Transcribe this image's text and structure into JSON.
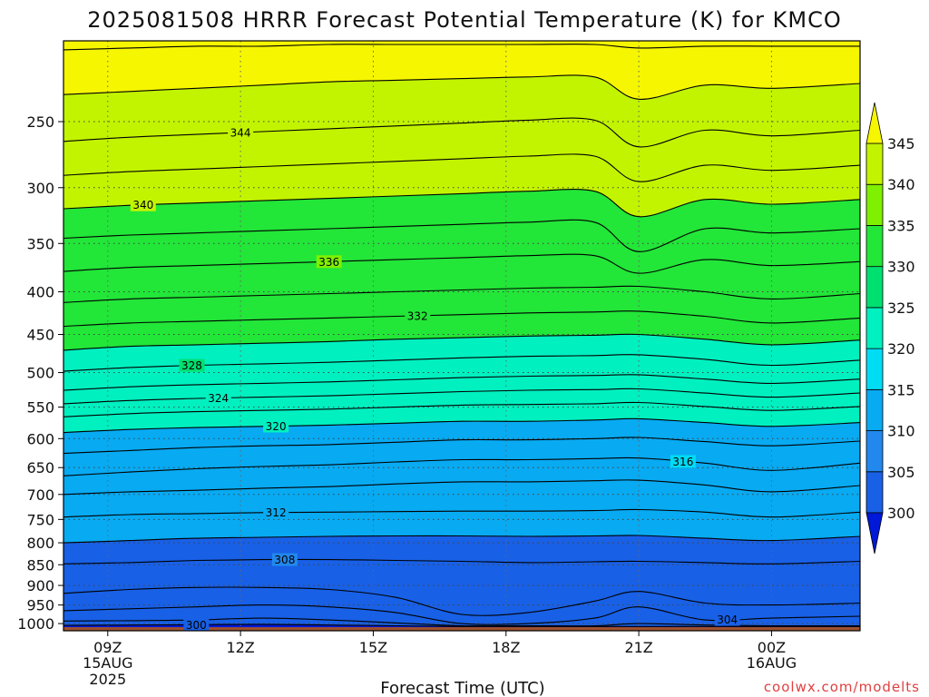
{
  "chart_data": {
    "type": "heatmap",
    "title": "2025081508 HRRR Forecast Potential Temperature (K) for KMCO",
    "xlabel": "Forecast Time (UTC)",
    "ylabel": "",
    "x_ticks": [
      {
        "label": "09Z",
        "sub1": "15AUG",
        "sub2": "2025",
        "hour": 9
      },
      {
        "label": "12Z",
        "sub1": "",
        "sub2": "",
        "hour": 12
      },
      {
        "label": "15Z",
        "sub1": "",
        "sub2": "",
        "hour": 15
      },
      {
        "label": "18Z",
        "sub1": "",
        "sub2": "",
        "hour": 18
      },
      {
        "label": "21Z",
        "sub1": "",
        "sub2": "",
        "hour": 21
      },
      {
        "label": "00Z",
        "sub1": "16AUG",
        "sub2": "",
        "hour": 24
      }
    ],
    "xlim_hours": [
      8,
      26
    ],
    "y_ticks": [
      250,
      300,
      350,
      400,
      450,
      500,
      550,
      600,
      650,
      700,
      750,
      800,
      850,
      900,
      950,
      1000
    ],
    "y_tick_labels": [
      "250",
      "300",
      "350",
      "400",
      "450",
      "500",
      "550",
      "600",
      "650",
      "700",
      "750",
      "800",
      "850",
      "900",
      "950",
      "1000"
    ],
    "ylim_hpa": [
      200,
      1020
    ],
    "y_scale": "log",
    "y_axis_inverted": true,
    "grid": "dotted",
    "colorbar": {
      "levels": [
        300,
        305,
        310,
        315,
        320,
        325,
        330,
        335,
        340,
        345
      ],
      "labels": [
        "300",
        "305",
        "310",
        "315",
        "320",
        "325",
        "330",
        "335",
        "340",
        "345"
      ],
      "colors": [
        "#0018d8",
        "#1860e6",
        "#2288ee",
        "#08aaf2",
        "#00dcf4",
        "#00f0c0",
        "#00e070",
        "#22e638",
        "#7ef000",
        "#c2f400",
        "#f6f600"
      ],
      "position": "right",
      "extend": "both"
    },
    "contour_interval": 2,
    "contours": [
      {
        "theta": 300,
        "label": "300",
        "label_hour": 11.0,
        "pressure_hpa": [
          1005,
          1004,
          1003,
          1002,
          1004,
          1006,
          1008,
          1008,
          1008,
          1008,
          1008,
          1008,
          1008
        ]
      },
      {
        "theta": 302,
        "label": "",
        "label_hour": null,
        "pressure_hpa": [
          993,
          992,
          990,
          985,
          990,
          998,
          1006,
          1006,
          1006,
          1000,
          1004,
          1006,
          1006
        ]
      },
      {
        "theta": 304,
        "label": "304",
        "label_hour": 23.0,
        "pressure_hpa": [
          965,
          960,
          955,
          950,
          955,
          970,
          1000,
          1000,
          985,
          955,
          990,
          985,
          980
        ]
      },
      {
        "theta": 306,
        "label": "",
        "label_hour": null,
        "pressure_hpa": [
          920,
          910,
          905,
          905,
          910,
          930,
          975,
          970,
          940,
          915,
          945,
          950,
          945
        ]
      },
      {
        "theta": 308,
        "label": "308",
        "label_hour": 13.0,
        "pressure_hpa": [
          848,
          845,
          840,
          838,
          838,
          840,
          842,
          845,
          843,
          842,
          845,
          848,
          842
        ]
      },
      {
        "theta": 310,
        "label": "",
        "label_hour": null,
        "pressure_hpa": [
          800,
          795,
          790,
          788,
          786,
          785,
          785,
          786,
          785,
          784,
          790,
          795,
          786
        ]
      },
      {
        "theta": 312,
        "label": "312",
        "label_hour": 12.8,
        "pressure_hpa": [
          745,
          740,
          738,
          736,
          735,
          734,
          733,
          733,
          732,
          730,
          735,
          745,
          735
        ]
      },
      {
        "theta": 314,
        "label": "",
        "label_hour": null,
        "pressure_hpa": [
          700,
          695,
          692,
          688,
          685,
          680,
          676,
          676,
          674,
          673,
          682,
          695,
          683
        ]
      },
      {
        "theta": 316,
        "label": "316",
        "label_hour": 22.0,
        "pressure_hpa": [
          665,
          658,
          652,
          648,
          645,
          640,
          636,
          636,
          634,
          633,
          642,
          655,
          642
        ]
      },
      {
        "theta": 318,
        "label": "",
        "label_hour": null,
        "pressure_hpa": [
          625,
          620,
          615,
          612,
          610,
          606,
          602,
          602,
          600,
          598,
          605,
          612,
          604
        ]
      },
      {
        "theta": 320,
        "label": "320",
        "label_hour": 12.8,
        "pressure_hpa": [
          590,
          585,
          582,
          580,
          578,
          575,
          572,
          572,
          570,
          568,
          574,
          580,
          574
        ]
      },
      {
        "theta": 322,
        "label": "",
        "label_hour": null,
        "pressure_hpa": [
          565,
          560,
          557,
          555,
          553,
          550,
          547,
          546,
          545,
          543,
          549,
          555,
          549
        ]
      },
      {
        "theta": 324,
        "label": "324",
        "label_hour": 11.5,
        "pressure_hpa": [
          545,
          540,
          537,
          535,
          533,
          530,
          527,
          525,
          524,
          523,
          529,
          535,
          529
        ]
      },
      {
        "theta": 326,
        "label": "",
        "label_hour": null,
        "pressure_hpa": [
          525,
          520,
          517,
          515,
          513,
          510,
          507,
          505,
          504,
          503,
          509,
          515,
          509
        ]
      },
      {
        "theta": 328,
        "label": "328",
        "label_hour": 10.9,
        "pressure_hpa": [
          498,
          493,
          490,
          488,
          486,
          483,
          480,
          478,
          477,
          476,
          482,
          490,
          483
        ]
      },
      {
        "theta": 330,
        "label": "",
        "label_hour": null,
        "pressure_hpa": [
          470,
          465,
          463,
          461,
          459,
          456,
          454,
          452,
          451,
          450,
          456,
          463,
          457
        ]
      },
      {
        "theta": 332,
        "label": "332",
        "label_hour": 16.0,
        "pressure_hpa": [
          440,
          436,
          434,
          432,
          430,
          428,
          426,
          424,
          423,
          422,
          428,
          436,
          430
        ]
      },
      {
        "theta": 334,
        "label": "",
        "label_hour": null,
        "pressure_hpa": [
          412,
          408,
          406,
          404,
          402,
          400,
          398,
          396,
          395,
          394,
          400,
          408,
          402
        ]
      },
      {
        "theta": 336,
        "label": "336",
        "label_hour": 14.0,
        "pressure_hpa": [
          378,
          374,
          372,
          370,
          368,
          366,
          364,
          362,
          362,
          380,
          366,
          372,
          368
        ]
      },
      {
        "theta": 338,
        "label": "",
        "label_hour": null,
        "pressure_hpa": [
          345,
          342,
          340,
          338,
          336,
          334,
          332,
          330,
          330,
          358,
          336,
          340,
          336
        ]
      },
      {
        "theta": 340,
        "label": "340",
        "label_hour": 9.8,
        "pressure_hpa": [
          318,
          315,
          313,
          311,
          309,
          307,
          305,
          303,
          303,
          325,
          310,
          314,
          310
        ]
      },
      {
        "theta": 342,
        "label": "",
        "label_hour": null,
        "pressure_hpa": [
          290,
          287,
          285,
          283,
          281,
          279,
          277,
          275,
          275,
          295,
          282,
          286,
          282
        ]
      },
      {
        "theta": 344,
        "label": "344",
        "label_hour": 12.0,
        "pressure_hpa": [
          264,
          261,
          259,
          257,
          255,
          253,
          251,
          249,
          249,
          268,
          256,
          260,
          256
        ]
      },
      {
        "theta": 346,
        "label": "",
        "label_hour": null,
        "pressure_hpa": [
          232,
          230,
          228,
          226,
          224,
          223,
          222,
          221,
          221,
          235,
          226,
          228,
          225
        ]
      },
      {
        "theta": 348,
        "label": "",
        "label_hour": null,
        "pressure_hpa": [
          205,
          204,
          203,
          203,
          202,
          202,
          202,
          202,
          202,
          204,
          203,
          203,
          203
        ]
      }
    ],
    "contour_x_hours": [
      8.0,
      9.5,
      11.0,
      12.5,
      14.0,
      15.5,
      17.0,
      18.5,
      20.0,
      21.0,
      22.5,
      24.0,
      26.0
    ],
    "surface_pressure_hpa": 1010
  },
  "credit": "coolwx.com/modelts"
}
